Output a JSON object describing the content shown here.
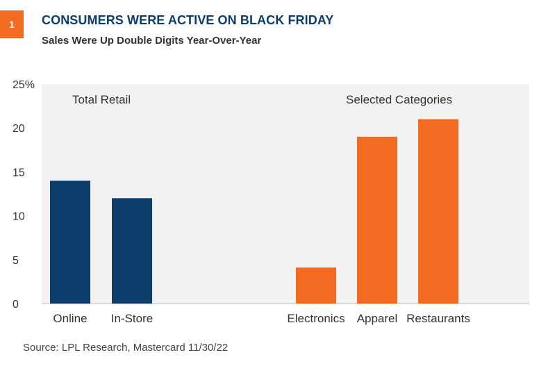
{
  "badge": {
    "label": "1",
    "color": "#f26b21"
  },
  "title": "CONSUMERS WERE ACTIVE ON BLACK FRIDAY",
  "subtitle": "Sales Were Up Double Digits Year-Over-Year",
  "source": "Source: LPL Research, Mastercard  11/30/22",
  "colors": {
    "navy": "#0c3d6b",
    "orange": "#f26b21",
    "plot_bg": "#f2f2f2",
    "title": "#0c3d6b"
  },
  "chart_data": {
    "type": "bar",
    "categories": [
      "Online",
      "In-Store",
      "Electronics",
      "Apparel",
      "Restaurants"
    ],
    "values": [
      14,
      12,
      4.1,
      19,
      21
    ],
    "groups": [
      {
        "label": "Total Retail",
        "categories": [
          "Online",
          "In-Store"
        ],
        "color": "#0c3d6b"
      },
      {
        "label": "Selected Categories",
        "categories": [
          "Electronics",
          "Apparel",
          "Restaurants"
        ],
        "color": "#f26b21"
      }
    ],
    "y_ticks": [
      "0",
      "5",
      "10",
      "15",
      "20",
      "25%"
    ],
    "ylim": [
      0,
      25
    ],
    "grid": false,
    "title": "CONSUMERS WERE ACTIVE ON BLACK FRIDAY",
    "xlabel": "",
    "ylabel": ""
  }
}
